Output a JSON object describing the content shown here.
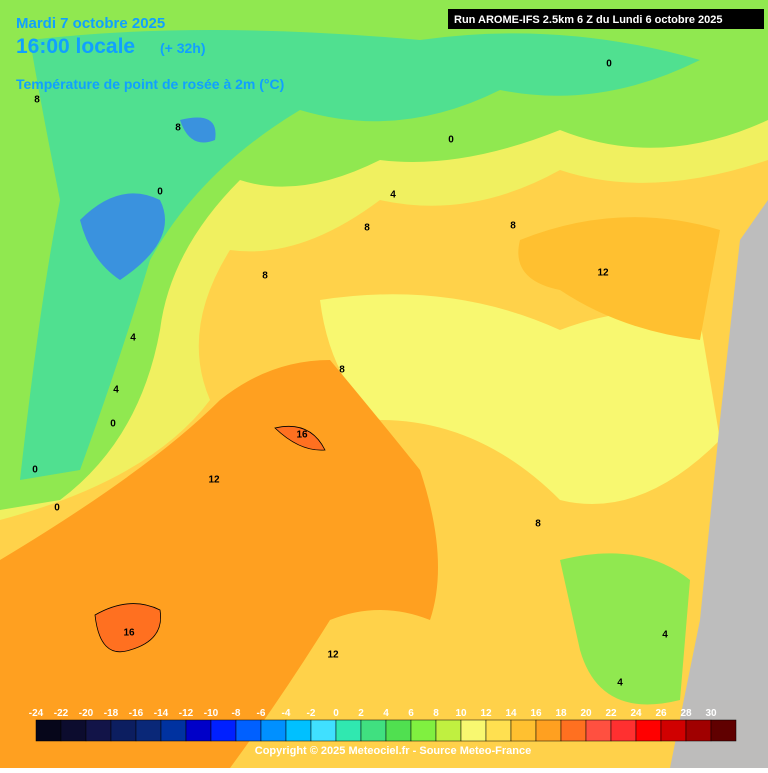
{
  "header": {
    "date": "Mardi 7 octobre 2025",
    "time": "16:00 locale",
    "lead": "(+ 32h)",
    "variable": "Température de point de rosée à 2m (°C)",
    "run": "Run AROME-IFS 2.5km 6 Z du Lundi 6 octobre 2025"
  },
  "map": {
    "contour_labels": [
      8,
      8,
      0,
      8,
      4,
      4,
      0,
      0,
      0,
      12,
      16,
      8,
      4,
      0,
      8,
      0,
      12,
      8,
      12,
      4,
      4,
      16,
      8
    ]
  },
  "legend": {
    "ticks": [
      -24,
      -22,
      -20,
      -18,
      -16,
      -14,
      -12,
      -10,
      -8,
      -6,
      -4,
      -2,
      0,
      2,
      4,
      6,
      8,
      10,
      12,
      14,
      16,
      18,
      20,
      22,
      24,
      26,
      28,
      30
    ],
    "colors": [
      "#06061a",
      "#0c0c2e",
      "#121448",
      "#0c1e60",
      "#0a2878",
      "#0032a0",
      "#0000c8",
      "#0020ff",
      "#0060ff",
      "#0090ff",
      "#00c0ff",
      "#40e0ff",
      "#30e8b0",
      "#40e080",
      "#50e050",
      "#80f040",
      "#c0f040",
      "#f8f870",
      "#ffe050",
      "#ffc030",
      "#ffa020",
      "#ff7020",
      "#ff5040",
      "#ff3030",
      "#ff0000",
      "#d00000",
      "#a00000",
      "#600000"
    ]
  },
  "footer": {
    "copyright": "Copyright © 2025 Meteociel.fr - Source Meteo-France"
  }
}
